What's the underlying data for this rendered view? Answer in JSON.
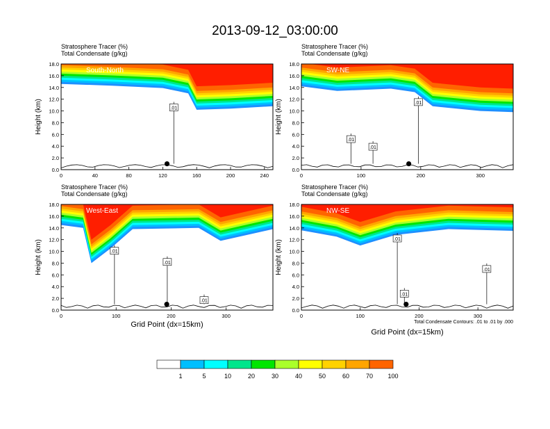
{
  "title": "2013-09-12_03:00:00",
  "colors": {
    "levels": [
      "#ffffff",
      "#1e90ff",
      "#00bfff",
      "#00ffff",
      "#00e68c",
      "#00e600",
      "#aaff2a",
      "#ffff00",
      "#ffd200",
      "#ffa500",
      "#ff6400",
      "#ff1e00"
    ],
    "background": "#ffffff",
    "axis": "#000000"
  },
  "colorbar": {
    "labels": [
      "1",
      "5",
      "10",
      "20",
      "30",
      "40",
      "50",
      "60",
      "70",
      "100"
    ]
  },
  "chart_data": [
    {
      "type": "heatmap",
      "panel": "south-north",
      "subtitle_line1": "Stratosphere Tracer   (%)",
      "subtitle_line2": "Total Condensate   (g/kg)",
      "label": "South-North",
      "ylabel": "Height (km)",
      "xlabel": "",
      "xlim": [
        0,
        250
      ],
      "ylim": [
        0,
        18
      ],
      "xticks": [
        "0",
        "40",
        "80",
        "120",
        "160",
        "200",
        "240"
      ],
      "yticks": [
        "0.0",
        "2.0",
        "4.0",
        "6.0",
        "8.0",
        "10.0",
        "12.0",
        "14.0",
        "16.0",
        "18.0"
      ],
      "tropopause_km": [
        [
          0,
          14.6
        ],
        [
          60,
          14.3
        ],
        [
          120,
          13.9
        ],
        [
          150,
          13.0
        ],
        [
          160,
          10.2
        ],
        [
          200,
          10.4
        ],
        [
          250,
          10.8
        ]
      ],
      "contour_labels": [
        {
          "text": ".01",
          "x": 133,
          "y": 10.6
        }
      ],
      "marker": {
        "x": 125,
        "y": 1.0
      }
    },
    {
      "type": "heatmap",
      "panel": "sw-ne",
      "subtitle_line1": "Stratosphere Tracer   (%)",
      "subtitle_line2": "Total Condensate   (g/kg)",
      "label": "SW-NE",
      "ylabel": "Height (km)",
      "xlabel": "",
      "xlim": [
        0,
        355
      ],
      "ylim": [
        0,
        18
      ],
      "xticks": [
        "0",
        "100",
        "200",
        "300"
      ],
      "yticks": [
        "0.0",
        "2.0",
        "4.0",
        "6.0",
        "8.0",
        "10.0",
        "12.0",
        "14.0",
        "16.0",
        "18.0"
      ],
      "tropopause_km": [
        [
          0,
          14.2
        ],
        [
          60,
          13.4
        ],
        [
          150,
          13.8
        ],
        [
          190,
          13.2
        ],
        [
          220,
          10.8
        ],
        [
          300,
          10.0
        ],
        [
          355,
          9.8
        ]
      ],
      "contour_labels": [
        {
          "text": ".01",
          "x": 196,
          "y": 11.5
        },
        {
          "text": ".01",
          "x": 83,
          "y": 5.2
        },
        {
          "text": ".01",
          "x": 120,
          "y": 3.9
        }
      ],
      "marker": {
        "x": 180,
        "y": 1.0
      }
    },
    {
      "type": "heatmap",
      "panel": "west-east",
      "subtitle_line1": "Stratosphere Tracer   (%)",
      "subtitle_line2": "Total Condensate   (g/kg)",
      "label": "West-East",
      "ylabel": "Height (km)",
      "xlabel": "Grid Point (dx=15km)",
      "xlim": [
        0,
        385
      ],
      "ylim": [
        0,
        18
      ],
      "xticks": [
        "0",
        "100",
        "200",
        "300"
      ],
      "yticks": [
        "0.0",
        "2.0",
        "4.0",
        "6.0",
        "8.0",
        "10.0",
        "12.0",
        "14.0",
        "16.0",
        "18.0"
      ],
      "tropopause_km": [
        [
          0,
          14.5
        ],
        [
          40,
          14.0
        ],
        [
          55,
          8.0
        ],
        [
          90,
          10.5
        ],
        [
          130,
          13.8
        ],
        [
          250,
          14.0
        ],
        [
          290,
          11.8
        ],
        [
          385,
          13.8
        ]
      ],
      "contour_labels": [
        {
          "text": ".01",
          "x": 97,
          "y": 10.1
        },
        {
          "text": ".01",
          "x": 193,
          "y": 8.2
        },
        {
          "text": ".01",
          "x": 260,
          "y": 1.7
        }
      ],
      "marker": {
        "x": 192,
        "y": 1.0
      }
    },
    {
      "type": "heatmap",
      "panel": "nw-se",
      "subtitle_line1": "Stratosphere Tracer   (%)",
      "subtitle_line2": "Total Condensate   (g/kg)",
      "label": "NW-SE",
      "ylabel": "Height (km)",
      "xlabel": "Grid Point (dx=15km)",
      "xlim": [
        0,
        360
      ],
      "ylim": [
        0,
        18
      ],
      "xticks": [
        "0",
        "100",
        "200",
        "300"
      ],
      "yticks": [
        "0.0",
        "2.0",
        "4.0",
        "6.0",
        "8.0",
        "10.0",
        "12.0",
        "14.0",
        "16.0",
        "18.0"
      ],
      "tropopause_km": [
        [
          0,
          13.6
        ],
        [
          60,
          12.5
        ],
        [
          100,
          11.0
        ],
        [
          160,
          12.8
        ],
        [
          250,
          13.8
        ],
        [
          360,
          13.5
        ]
      ],
      "contour_labels": [
        {
          "text": ".01",
          "x": 163,
          "y": 12.2
        },
        {
          "text": ".01",
          "x": 175,
          "y": 2.8
        },
        {
          "text": ".01",
          "x": 315,
          "y": 7.0
        }
      ],
      "marker": {
        "x": 178,
        "y": 1.0
      },
      "footnote": "Total Condensate Contours: .01 to .01 by .000"
    }
  ]
}
